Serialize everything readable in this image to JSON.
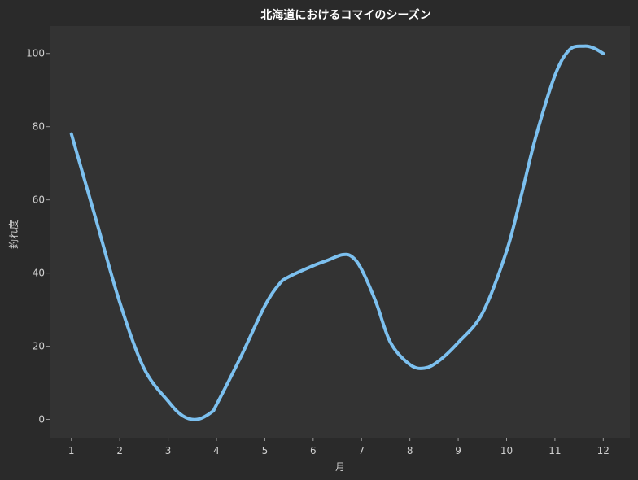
{
  "chart_data": {
    "type": "line",
    "title": "北海道におけるコマイのシーズン",
    "xlabel": "月",
    "ylabel": "釣れ度",
    "x": [
      1,
      1.5,
      2,
      2.5,
      3,
      3.3,
      3.6,
      3.9,
      4,
      4.5,
      5,
      5.3,
      5.5,
      6,
      6.3,
      6.6,
      6.8,
      7,
      7.3,
      7.6,
      8,
      8.3,
      8.6,
      9,
      9.5,
      10,
      10.3,
      10.6,
      11,
      11.3,
      11.6,
      11.8,
      12
    ],
    "series": [
      {
        "values": [
          78,
          55,
          32,
          14,
          5,
          1,
          0,
          2,
          4,
          17,
          31,
          37,
          39,
          42,
          43.5,
          45,
          44.5,
          41,
          32,
          21,
          15,
          14,
          16,
          21,
          29,
          46,
          61,
          77,
          94,
          101,
          102,
          101.5,
          100
        ]
      }
    ],
    "xticks": [
      "1",
      "2",
      "3",
      "4",
      "5",
      "6",
      "7",
      "8",
      "9",
      "10",
      "11",
      "12"
    ],
    "yticks": [
      "0",
      "20",
      "40",
      "60",
      "80",
      "100"
    ],
    "xlim": [
      0.55,
      12.55
    ],
    "ylim": [
      -5,
      107.5
    ],
    "grid": false,
    "colors": {
      "line": "#7cc0ef",
      "plot_bg": "#333333",
      "figure_bg": "#2a2a2a"
    }
  }
}
